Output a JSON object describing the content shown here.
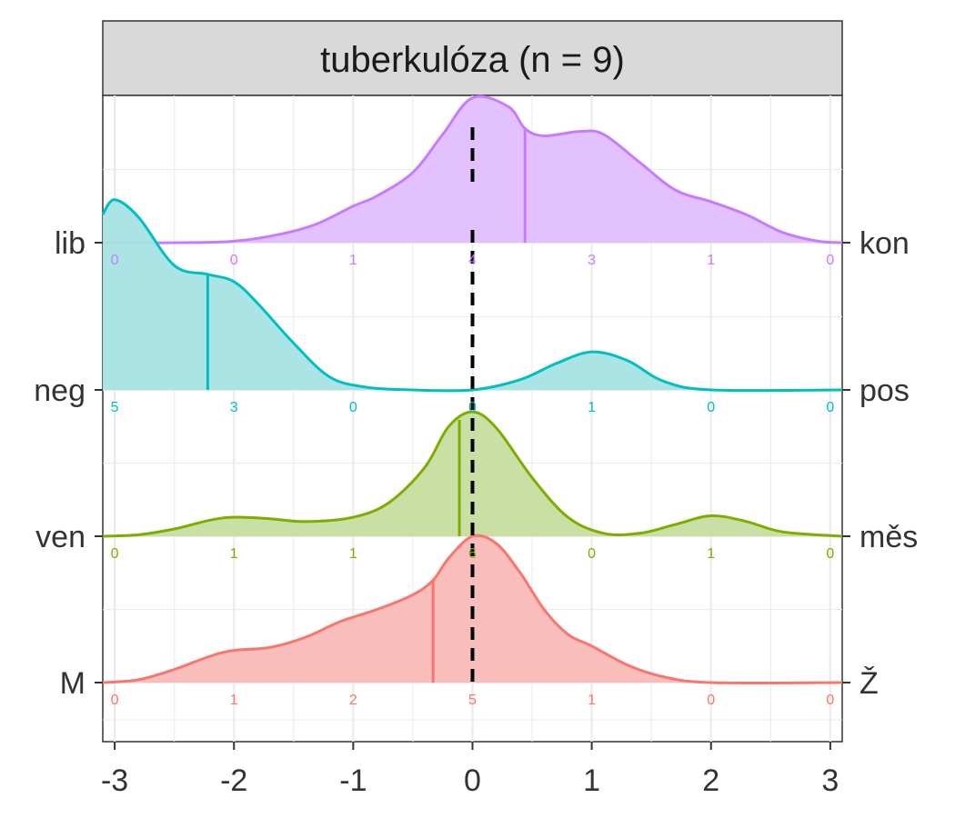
{
  "chart_data": {
    "type": "ridgeline-density",
    "title": "tuberkulóza (n = 9)",
    "xlabel": "",
    "ylabel": "",
    "xlim": [
      -3.1,
      3.1
    ],
    "x_ticks": [
      "-3",
      "-2",
      "-1",
      "0",
      "1",
      "2",
      "3"
    ],
    "tick_values": [
      -3,
      -2,
      -1,
      0,
      1,
      2,
      3
    ],
    "reference_line_x": 0,
    "grid": true,
    "series": [
      {
        "left": "lib",
        "right": "kon",
        "color": "#C77CFF",
        "fill": "#E2BEFF",
        "mean": 0.44,
        "counts": [
          0,
          0,
          1,
          4,
          3,
          1,
          0
        ],
        "count_labels": [
          "0",
          "0",
          "1",
          "4",
          "3",
          "1",
          "0"
        ],
        "density": [
          [
            -3.1,
            0.0
          ],
          [
            -2.5,
            0.0
          ],
          [
            -2.0,
            0.01
          ],
          [
            -1.6,
            0.06
          ],
          [
            -1.3,
            0.13
          ],
          [
            -1.0,
            0.25
          ],
          [
            -0.8,
            0.32
          ],
          [
            -0.5,
            0.48
          ],
          [
            -0.25,
            0.74
          ],
          [
            0.0,
            0.99
          ],
          [
            0.3,
            0.93
          ],
          [
            0.44,
            0.78
          ],
          [
            0.6,
            0.73
          ],
          [
            0.9,
            0.76
          ],
          [
            1.1,
            0.74
          ],
          [
            1.4,
            0.55
          ],
          [
            1.7,
            0.36
          ],
          [
            2.0,
            0.28
          ],
          [
            2.3,
            0.19
          ],
          [
            2.6,
            0.07
          ],
          [
            2.9,
            0.01
          ],
          [
            3.1,
            0.0
          ]
        ]
      },
      {
        "left": "neg",
        "right": "pos",
        "color": "#00BFC4",
        "fill": "#A6E3E3",
        "mean": -2.22,
        "counts": [
          5,
          3,
          0,
          0,
          1,
          0,
          0
        ],
        "count_labels": [
          "5",
          "3",
          "0",
          "0",
          "1",
          "0",
          "0"
        ],
        "density": [
          [
            -3.1,
            1.2
          ],
          [
            -3.0,
            1.3
          ],
          [
            -2.8,
            1.18
          ],
          [
            -2.5,
            0.85
          ],
          [
            -2.22,
            0.79
          ],
          [
            -2.0,
            0.74
          ],
          [
            -1.8,
            0.59
          ],
          [
            -1.5,
            0.32
          ],
          [
            -1.2,
            0.09
          ],
          [
            -0.9,
            0.02
          ],
          [
            -0.5,
            0.0
          ],
          [
            0.0,
            0.0
          ],
          [
            0.4,
            0.07
          ],
          [
            0.7,
            0.18
          ],
          [
            1.0,
            0.26
          ],
          [
            1.3,
            0.2
          ],
          [
            1.6,
            0.06
          ],
          [
            2.0,
            0.0
          ],
          [
            3.1,
            0.0
          ]
        ]
      },
      {
        "left": "ven",
        "right": "měs",
        "color": "#7CAE00",
        "fill": "#C7DD9E",
        "mean": -0.11,
        "counts": [
          0,
          1,
          1,
          6,
          0,
          1,
          0
        ],
        "count_labels": [
          "0",
          "1",
          "1",
          "6",
          "0",
          "1",
          "0"
        ],
        "density": [
          [
            -3.1,
            0.0
          ],
          [
            -2.8,
            0.01
          ],
          [
            -2.5,
            0.05
          ],
          [
            -2.2,
            0.11
          ],
          [
            -2.0,
            0.13
          ],
          [
            -1.7,
            0.12
          ],
          [
            -1.4,
            0.1
          ],
          [
            -1.0,
            0.13
          ],
          [
            -0.7,
            0.23
          ],
          [
            -0.4,
            0.47
          ],
          [
            -0.2,
            0.75
          ],
          [
            0.0,
            0.85
          ],
          [
            0.2,
            0.74
          ],
          [
            0.5,
            0.4
          ],
          [
            0.8,
            0.13
          ],
          [
            1.1,
            0.02
          ],
          [
            1.4,
            0.02
          ],
          [
            1.7,
            0.08
          ],
          [
            2.0,
            0.14
          ],
          [
            2.3,
            0.1
          ],
          [
            2.6,
            0.03
          ],
          [
            3.1,
            0.0
          ]
        ]
      },
      {
        "left": "M",
        "right": "Ž",
        "color": "#F8766D",
        "fill": "#F9BBB8",
        "mean": -0.33,
        "counts": [
          0,
          1,
          2,
          5,
          1,
          0,
          0
        ],
        "count_labels": [
          "0",
          "1",
          "2",
          "5",
          "1",
          "0",
          "0"
        ],
        "density": [
          [
            -3.1,
            0.0
          ],
          [
            -2.8,
            0.02
          ],
          [
            -2.5,
            0.09
          ],
          [
            -2.2,
            0.18
          ],
          [
            -2.0,
            0.22
          ],
          [
            -1.7,
            0.24
          ],
          [
            -1.4,
            0.31
          ],
          [
            -1.1,
            0.42
          ],
          [
            -0.8,
            0.5
          ],
          [
            -0.5,
            0.6
          ],
          [
            -0.33,
            0.7
          ],
          [
            -0.2,
            0.85
          ],
          [
            0.0,
            1.0
          ],
          [
            0.2,
            0.95
          ],
          [
            0.4,
            0.75
          ],
          [
            0.6,
            0.5
          ],
          [
            0.8,
            0.33
          ],
          [
            1.0,
            0.25
          ],
          [
            1.3,
            0.12
          ],
          [
            1.6,
            0.04
          ],
          [
            2.0,
            0.0
          ],
          [
            3.1,
            0.0
          ]
        ]
      }
    ]
  }
}
